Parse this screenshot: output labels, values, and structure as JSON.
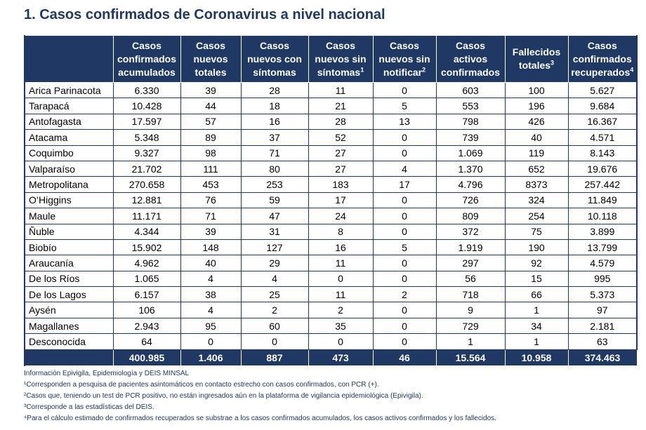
{
  "title": "1. Casos confirmados de Coronavirus a nivel nacional",
  "headers": [
    {
      "text": "Casos confirmados acumulados",
      "sup": ""
    },
    {
      "text": "Casos nuevos totales",
      "sup": ""
    },
    {
      "text": "Casos nuevos con síntomas",
      "sup": ""
    },
    {
      "text": "Casos nuevos sin síntomas",
      "sup": "1"
    },
    {
      "text": "Casos nuevos sin notificar",
      "sup": "2"
    },
    {
      "text": "Casos activos confirmados",
      "sup": ""
    },
    {
      "text": "Fallecidos totales",
      "sup": "3"
    },
    {
      "text": "Casos confirmados recuperados",
      "sup": "4"
    }
  ],
  "rows": [
    {
      "region": "Arica Parinacota",
      "values": [
        "6.330",
        "39",
        "28",
        "11",
        "0",
        "603",
        "100",
        "5.627"
      ]
    },
    {
      "region": "Tarapacá",
      "values": [
        "10.428",
        "44",
        "18",
        "21",
        "5",
        "553",
        "196",
        "9.684"
      ]
    },
    {
      "region": "Antofagasta",
      "values": [
        "17.597",
        "57",
        "16",
        "28",
        "13",
        "798",
        "426",
        "16.367"
      ]
    },
    {
      "region": "Atacama",
      "values": [
        "5.348",
        "89",
        "37",
        "52",
        "0",
        "739",
        "40",
        "4.571"
      ]
    },
    {
      "region": "Coquimbo",
      "values": [
        "9.327",
        "98",
        "71",
        "27",
        "0",
        "1.069",
        "119",
        "8.143"
      ]
    },
    {
      "region": "Valparaíso",
      "values": [
        "21.702",
        "111",
        "80",
        "27",
        "4",
        "1.370",
        "652",
        "19.676"
      ]
    },
    {
      "region": "Metropolitana",
      "values": [
        "270.658",
        "453",
        "253",
        "183",
        "17",
        "4.796",
        "8373",
        "257.442"
      ]
    },
    {
      "region": "O’Higgins",
      "values": [
        "12.881",
        "76",
        "59",
        "17",
        "0",
        "726",
        "324",
        "11.849"
      ]
    },
    {
      "region": "Maule",
      "values": [
        "11.171",
        "71",
        "47",
        "24",
        "0",
        "809",
        "254",
        "10.118"
      ]
    },
    {
      "region": "Ñuble",
      "values": [
        "4.344",
        "39",
        "31",
        "8",
        "0",
        "372",
        "75",
        "3.899"
      ]
    },
    {
      "region": "Biobío",
      "values": [
        "15.902",
        "148",
        "127",
        "16",
        "5",
        "1.919",
        "190",
        "13.799"
      ]
    },
    {
      "region": "Araucanía",
      "values": [
        "4.962",
        "40",
        "29",
        "11",
        "0",
        "297",
        "92",
        "4.579"
      ]
    },
    {
      "region": "De los Ríos",
      "values": [
        "1.065",
        "4",
        "4",
        "0",
        "0",
        "56",
        "15",
        "995"
      ]
    },
    {
      "region": "De los Lagos",
      "values": [
        "6.157",
        "38",
        "25",
        "11",
        "2",
        "718",
        "66",
        "5.373"
      ]
    },
    {
      "region": "Aysén",
      "values": [
        "106",
        "4",
        "2",
        "2",
        "0",
        "9",
        "1",
        "97"
      ]
    },
    {
      "region": "Magallanes",
      "values": [
        "2.943",
        "95",
        "60",
        "35",
        "0",
        "729",
        "34",
        "2.181"
      ]
    },
    {
      "region": "Desconocida",
      "values": [
        "64",
        "0",
        "0",
        "0",
        "0",
        "1",
        "1",
        "63"
      ]
    }
  ],
  "totals": [
    "400.985",
    "1.406",
    "887",
    "473",
    "46",
    "15.564",
    "10.958",
    "374.463"
  ],
  "notes": {
    "source": "Información Epivigila, Epidemiología y DEIS MINSAL",
    "n1": "¹Corresponden a pesquisa de pacientes asintomáticos en contacto estrecho con casos confirmados, con PCR (+).",
    "n2": "²Casos que, teniendo un test de PCR positivo, no están ingresados aún en la plataforma de vigilancia epidemiológica (Epivigila).",
    "n3": "³Corresponde a las estadísticas del DEIS.",
    "n4": "⁴Para el cálculo estimado de confirmados recuperados se substrae a los casos confirmados acumulados, los casos activos confirmados y los fallecidos."
  }
}
